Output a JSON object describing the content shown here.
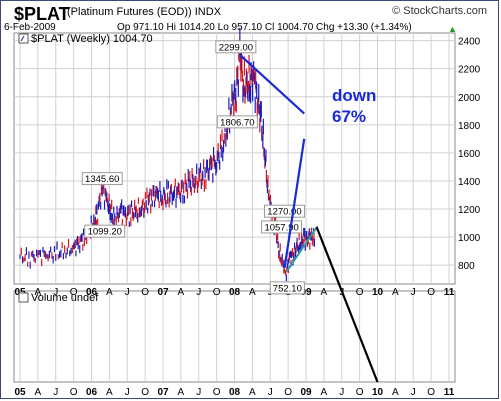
{
  "header": {
    "symbol": "$PLAT",
    "description": "(Platinum Futures (EOD)) INDX",
    "date": "6-Feb-2009",
    "ohlc": "Op 971.10  Hi 1014.20  Lo 957.10  Cl 1004.70  Chg +13.30 (+1.34%)",
    "watermark": "© StockCharts.com"
  },
  "legend": {
    "price_label": "$PLAT (Weekly) 1004.70",
    "volume_label": "Volume undef"
  },
  "colors": {
    "up": "#1b1bb8",
    "down": "#d4141e",
    "trend": "#1a2bd6",
    "projection": "#000000",
    "channel": "#2a9a9a"
  },
  "annotation": {
    "line1": "down",
    "line2": "67%"
  },
  "chart_data": {
    "type": "line",
    "title": "$PLAT (Weekly) 1004.70",
    "x_labels": [
      "05",
      "A",
      "J",
      "O",
      "06",
      "A",
      "J",
      "O",
      "07",
      "A",
      "J",
      "O",
      "08",
      "A",
      "J",
      "O",
      "09",
      "A",
      "J",
      "O",
      "10",
      "A",
      "J",
      "O",
      "11"
    ],
    "y_ticks": [
      800,
      1000,
      1200,
      1400,
      1600,
      1800,
      2000,
      2200,
      2400
    ],
    "ylim": [
      680,
      2440
    ],
    "xlim": [
      0,
      24
    ],
    "grid": true,
    "series": [
      {
        "x": [
          0,
          0.5,
          1,
          1.5,
          2,
          2.5,
          3,
          3.3,
          3.6,
          3.9,
          4.1,
          4.3,
          4.6,
          4.9,
          5.1,
          5.3,
          5.6,
          5.9,
          6.2,
          6.5,
          6.8,
          7.1,
          7.4,
          7.7,
          8,
          8.3,
          8.6,
          8.9,
          9.2,
          9.5,
          9.8,
          10.1,
          10.4,
          10.7,
          11,
          11.3,
          11.6,
          11.9,
          12.1,
          12.3,
          12.5,
          12.7,
          12.9,
          13.1,
          13.3,
          13.5,
          13.7,
          13.9,
          14.1,
          14.3,
          14.5,
          14.7,
          14.9,
          15.1,
          15.3,
          15.5,
          15.7,
          15.9,
          16.1,
          16.3,
          16.5
        ],
        "values": [
          860,
          850,
          870,
          875,
          880,
          900,
          920,
          960,
          1000,
          1040,
          1080,
          1150,
          1345.6,
          1250,
          1180,
          1099.2,
          1200,
          1150,
          1170,
          1180,
          1200,
          1250,
          1290,
          1300,
          1280,
          1300,
          1320,
          1310,
          1350,
          1380,
          1410,
          1420,
          1460,
          1500,
          1550,
          1620,
          1806.7,
          1950,
          2050,
          2299,
          2100,
          2050,
          2150,
          2100,
          2000,
          1800,
          1600,
          1270,
          1200,
          1057.9,
          900,
          800,
          752.1,
          850,
          880,
          920,
          960,
          980,
          1000,
          990,
          1004.7
        ]
      }
    ],
    "annotations": [
      {
        "text": "1345.60",
        "x": 4.6,
        "y": 1345.6
      },
      {
        "text": "1099.20",
        "x": 5.3,
        "y": 1099.2
      },
      {
        "text": "1806.70",
        "x": 11.6,
        "y": 1806.7
      },
      {
        "text": "2299.00",
        "x": 12.3,
        "y": 2299
      },
      {
        "text": "1270.00",
        "x": 13.9,
        "y": 1270
      },
      {
        "text": "1057.90",
        "x": 14.3,
        "y": 1057.9
      },
      {
        "text": "752.10",
        "x": 14.9,
        "y": 752.1
      }
    ]
  }
}
